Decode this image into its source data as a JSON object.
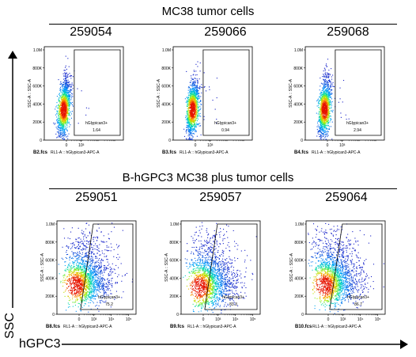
{
  "figure": {
    "top_title": "MC38 tumor cells",
    "bottom_title": "B-hGPC3 MC38 plus tumor cells",
    "y_arrow_label": "SSC",
    "x_arrow_label": "hGPC3",
    "colors": {
      "ink": "#000000",
      "gate": "#000000",
      "plot_bg": "#ffffff"
    }
  },
  "chart_data": [
    {
      "type": "scatter",
      "kind": "flow-cytometry-density",
      "sample_id": "259054",
      "file": "B2.fcs",
      "xlabel": "RL1-A :: hGlypican3-APC-A",
      "ylabel": "SSC-A :: SSC-A",
      "y_ticks": [
        "0",
        "200K",
        "400K",
        "600K",
        "800K",
        "1.0M"
      ],
      "x_ticks": [
        "0",
        "10³"
      ],
      "gate": {
        "name": "hGlypican3+",
        "percent": "1.64"
      },
      "population": {
        "x_center": 0,
        "y_center": 340000,
        "spread": "narrow"
      }
    },
    {
      "type": "scatter",
      "kind": "flow-cytometry-density",
      "sample_id": "259066",
      "file": "B3.fcs",
      "xlabel": "RL1-A :: hGlypican3-APC-A",
      "ylabel": "SSC-A :: SSC-A",
      "y_ticks": [
        "0",
        "200K",
        "400K",
        "600K",
        "800K",
        "1.0M"
      ],
      "x_ticks": [
        "0",
        "10³"
      ],
      "gate": {
        "name": "hGlypican3+",
        "percent": "0.94"
      },
      "population": {
        "x_center": 0,
        "y_center": 340000,
        "spread": "narrow"
      }
    },
    {
      "type": "scatter",
      "kind": "flow-cytometry-density",
      "sample_id": "259068",
      "file": "B4.fcs",
      "xlabel": "RL1-A :: hGlypican3-APC-A",
      "ylabel": "SSC-A :: SSC-A",
      "y_ticks": [
        "0",
        "200K",
        "400K",
        "600K",
        "800K",
        "1.0M"
      ],
      "x_ticks": [
        "0",
        "10³"
      ],
      "gate": {
        "name": "hGlypican3+",
        "percent": "2.94"
      },
      "population": {
        "x_center": 0,
        "y_center": 340000,
        "spread": "narrow"
      }
    },
    {
      "type": "scatter",
      "kind": "flow-cytometry-density",
      "sample_id": "259051",
      "file": "B8.fcs",
      "xlabel": "RL1-A :: hGlypican3-APC-A",
      "ylabel": "SSC-A :: SSC-A",
      "y_ticks": [
        "0",
        "200K",
        "400K",
        "600K",
        "800K",
        "1.0M"
      ],
      "x_ticks": [
        "0",
        "10³",
        "10⁴",
        "10⁵"
      ],
      "gate": {
        "name": "hGlypican3+",
        "percent": "75.2"
      },
      "population": {
        "x_center": 0,
        "y_center": 320000,
        "spread": "wide"
      }
    },
    {
      "type": "scatter",
      "kind": "flow-cytometry-density",
      "sample_id": "259057",
      "file": "B9.fcs",
      "xlabel": "RL1-A :: hGlypican3-APC-A",
      "ylabel": "SSC-A :: SSC-A",
      "y_ticks": [
        "0",
        "200K",
        "400K",
        "600K",
        "800K",
        "1.0M"
      ],
      "x_ticks": [
        "0",
        "10³",
        "10⁴",
        "10⁵"
      ],
      "gate": {
        "name": "hGlypican3+",
        "percent": "83.3"
      },
      "population": {
        "x_center": 0,
        "y_center": 300000,
        "spread": "wide"
      }
    },
    {
      "type": "scatter",
      "kind": "flow-cytometry-density",
      "sample_id": "259064",
      "file": "B10.fcs",
      "xlabel": "RL1-A :: hGlypican3-APC-A",
      "ylabel": "SSC-A :: SSC-A",
      "y_ticks": [
        "0",
        "200K",
        "400K",
        "600K",
        "800K",
        "1.0M"
      ],
      "x_ticks": [
        "0",
        "10³",
        "10⁴",
        "10⁵"
      ],
      "gate": {
        "name": "hGlypican3+",
        "percent": "86.7"
      },
      "population": {
        "x_center": 0,
        "y_center": 320000,
        "spread": "wide"
      }
    }
  ]
}
